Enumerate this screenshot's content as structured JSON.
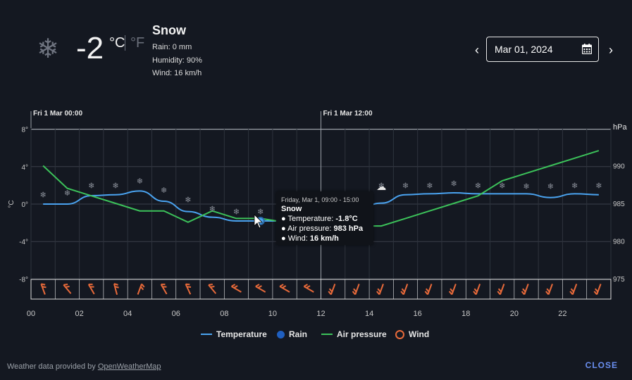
{
  "current": {
    "temperature": "-2",
    "unit_c": "°C",
    "unit_f": "°F",
    "condition": "Snow",
    "rain": "Rain: 0 mm",
    "humidity": "Humidity: 90%",
    "wind": "Wind: 16 km/h",
    "icon": "snowflake-icon"
  },
  "date_picker": {
    "value": "Mar 01, 2024",
    "prev_icon": "chevron-left-icon",
    "next_icon": "chevron-right-icon",
    "calendar_icon": "calendar-icon"
  },
  "tooltip": {
    "title": "Friday, Mar 1, 09:00 - 15:00",
    "condition": "Snow",
    "temperature_label": "Temperature: ",
    "temperature_value": "-1.8°C",
    "pressure_label": "Air pressure: ",
    "pressure_value": "983 hPa",
    "wind_label": "Wind: ",
    "wind_value": "16 km/h"
  },
  "legend": [
    {
      "label": "Temperature",
      "color": "#4aa3f0"
    },
    {
      "label": "Rain",
      "color": "#1f5fc0"
    },
    {
      "label": "Air pressure",
      "color": "#3cc25a"
    },
    {
      "label": "Wind",
      "color": "#e86a3a"
    }
  ],
  "footer": {
    "prefix": "Weather data provided by ",
    "link": "OpenWeatherMap",
    "close": "CLOSE"
  },
  "chart_data": {
    "type": "line",
    "top_labels": [
      "Fri 1 Mar 00:00",
      "Fri 1 Mar 12:00"
    ],
    "x_ticks": [
      "00",
      "02",
      "04",
      "06",
      "08",
      "10",
      "12",
      "14",
      "16",
      "18",
      "20",
      "22"
    ],
    "y_left_label": "°C",
    "y_left_ticks": [
      "8°",
      "4°",
      "0°",
      "-4°",
      "-8°"
    ],
    "y_left_range": [
      -8,
      8
    ],
    "y_right_label": "hPa",
    "y_right_ticks": [
      "990",
      "985",
      "980",
      "975"
    ],
    "y_right_range": [
      975,
      993
    ],
    "hours": [
      0.5,
      1.5,
      2.5,
      3.5,
      4.5,
      5.5,
      6.5,
      7.5,
      8.5,
      9.5,
      10.5,
      11.5,
      12.5,
      13.5,
      14.5,
      15.5,
      16.5,
      17.5,
      18.5,
      19.5,
      20.5,
      21.5,
      22.5,
      23.5
    ],
    "series": [
      {
        "name": "Temperature",
        "color": "#4aa3f0",
        "values": [
          0,
          0,
          0.9,
          1.0,
          1.4,
          0.3,
          -0.8,
          -1.4,
          -1.8,
          -1.8,
          -1.8,
          -1.8,
          -0.5,
          -0.5,
          0.1,
          1.0,
          1.1,
          1.2,
          1.1,
          1.1,
          1.1,
          0.7,
          1.1,
          1.0
        ]
      },
      {
        "name": "Air pressure",
        "color": "#3cc25a",
        "values": [
          990,
          987,
          986,
          985,
          984,
          984,
          982.5,
          984,
          983,
          983,
          982.5,
          982.5,
          982.5,
          982,
          982,
          983,
          984,
          985,
          986,
          988,
          989,
          990,
          991,
          992
        ]
      }
    ],
    "snow_marker_temps": [
      1.0,
      1.2,
      2.0,
      2.0,
      2.5,
      1.5,
      0.5,
      -0.5,
      -0.8,
      -0.8,
      -0.6,
      -0.6,
      -0.5,
      -0.5,
      2.0,
      2.0,
      2.0,
      2.2,
      2.0,
      2.0,
      1.9,
      1.9,
      2.0,
      2.0
    ],
    "wind_directions_deg": [
      340,
      320,
      330,
      345,
      20,
      330,
      335,
      320,
      300,
      300,
      300,
      300,
      200,
      200,
      200,
      200,
      200,
      200,
      200,
      200,
      200,
      200,
      200,
      200
    ]
  }
}
